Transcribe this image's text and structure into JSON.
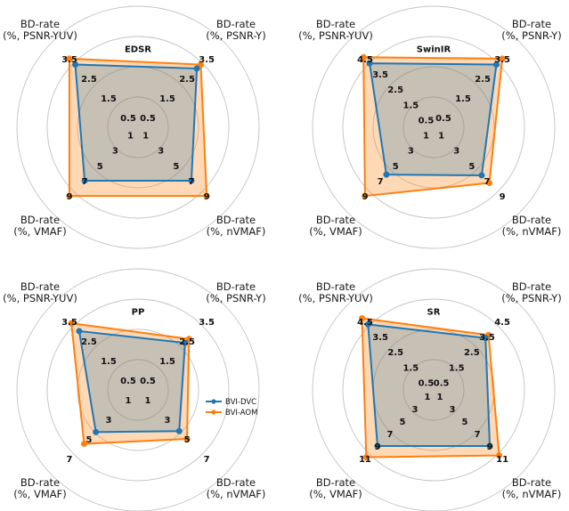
{
  "legend": [
    {
      "name": "BVI-DVC",
      "color": "#1f77b4"
    },
    {
      "name": "BVI-AOM",
      "color": "#ff7f0e"
    }
  ],
  "axis_titles": {
    "psnr_yuv": [
      "BD-rate",
      "(%, PSNR-YUV)"
    ],
    "psnr_y": [
      "BD-rate",
      "(%, PSNR-Y)"
    ],
    "nvmaf": [
      "BD-rate",
      "(%, nVMAF)"
    ],
    "vmaf": [
      "BD-rate",
      "(%, VMAF)"
    ]
  },
  "chart_data": [
    {
      "type": "radar",
      "title": "EDSR",
      "axes": [
        "BD-rate (%, PSNR-YUV)",
        "BD-rate (%, PSNR-Y)",
        "BD-rate (%, nVMAF)",
        "BD-rate (%, VMAF)"
      ],
      "series": [
        {
          "name": "BVI-DVC",
          "values": [
            3.2,
            3.0,
            7.0,
            7.0
          ]
        },
        {
          "name": "BVI-AOM",
          "values": [
            3.5,
            3.2,
            9.0,
            9.0
          ]
        }
      ],
      "ticks": {
        "psnr_yuv": [
          "0.5",
          "1.5",
          "2.5",
          "3.5"
        ],
        "psnr_y": [
          "0.5",
          "1.5",
          "2.5",
          "3.5"
        ],
        "nvmaf": [
          "1",
          "3",
          "5",
          "7",
          "9"
        ],
        "vmaf": [
          "1",
          "3",
          "5",
          "7",
          "9"
        ]
      }
    },
    {
      "type": "radar",
      "title": "SwinIR",
      "axes": [
        "BD-rate (%, PSNR-YUV)",
        "BD-rate (%, PSNR-Y)",
        "BD-rate (%, nVMAF)",
        "BD-rate (%, VMAF)"
      ],
      "series": [
        {
          "name": "BVI-DVC",
          "values": [
            4.2,
            3.2,
            6.3,
            6.2
          ]
        },
        {
          "name": "BVI-AOM",
          "values": [
            4.6,
            3.5,
            7.3,
            9.0
          ]
        }
      ],
      "ticks": {
        "psnr_yuv": [
          "0.5",
          "1.5",
          "2.5",
          "3.5",
          "4.5"
        ],
        "psnr_y": [
          "0.5",
          "1.5",
          "2.5",
          "3.5"
        ],
        "nvmaf": [
          "1",
          "3",
          "5",
          "7",
          "9"
        ],
        "vmaf": [
          "1",
          "3",
          "5",
          "7",
          "9"
        ]
      }
    },
    {
      "type": "radar",
      "title": "PP",
      "axes": [
        "BD-rate (%, PSNR-YUV)",
        "BD-rate (%, PSNR-Y)",
        "BD-rate (%, nVMAF)",
        "BD-rate (%, VMAF)"
      ],
      "series": [
        {
          "name": "BVI-DVC",
          "values": [
            3.0,
            2.4,
            4.2,
            4.3
          ]
        },
        {
          "name": "BVI-AOM",
          "values": [
            3.4,
            2.6,
            5.0,
            5.5
          ]
        }
      ],
      "ticks": {
        "psnr_yuv": [
          "0.5",
          "1.5",
          "2.5",
          "3.5"
        ],
        "psnr_y": [
          "0.5",
          "1.5",
          "2.5",
          "3.5"
        ],
        "nvmaf": [
          "1",
          "3",
          "5",
          "7"
        ],
        "vmaf": [
          "1",
          "3",
          "5",
          "7"
        ]
      }
    },
    {
      "type": "radar",
      "title": "SR",
      "axes": [
        "BD-rate (%, PSNR-YUV)",
        "BD-rate (%, PSNR-Y)",
        "BD-rate (%, nVMAF)",
        "BD-rate (%, VMAF)"
      ],
      "series": [
        {
          "name": "BVI-DVC",
          "values": [
            4.3,
            3.4,
            9.0,
            9.0
          ]
        },
        {
          "name": "BVI-AOM",
          "values": [
            4.7,
            3.6,
            10.5,
            10.8
          ]
        }
      ],
      "ticks": {
        "psnr_yuv": [
          "0.5",
          "1.5",
          "2.5",
          "3.5",
          "4.5"
        ],
        "psnr_y": [
          "0.5",
          "1.5",
          "2.5",
          "3.5",
          "4.5"
        ],
        "nvmaf": [
          "1",
          "3",
          "5",
          "7",
          "9",
          "11"
        ],
        "vmaf": [
          "1",
          "3",
          "5",
          "7",
          "9",
          "11"
        ]
      }
    }
  ]
}
